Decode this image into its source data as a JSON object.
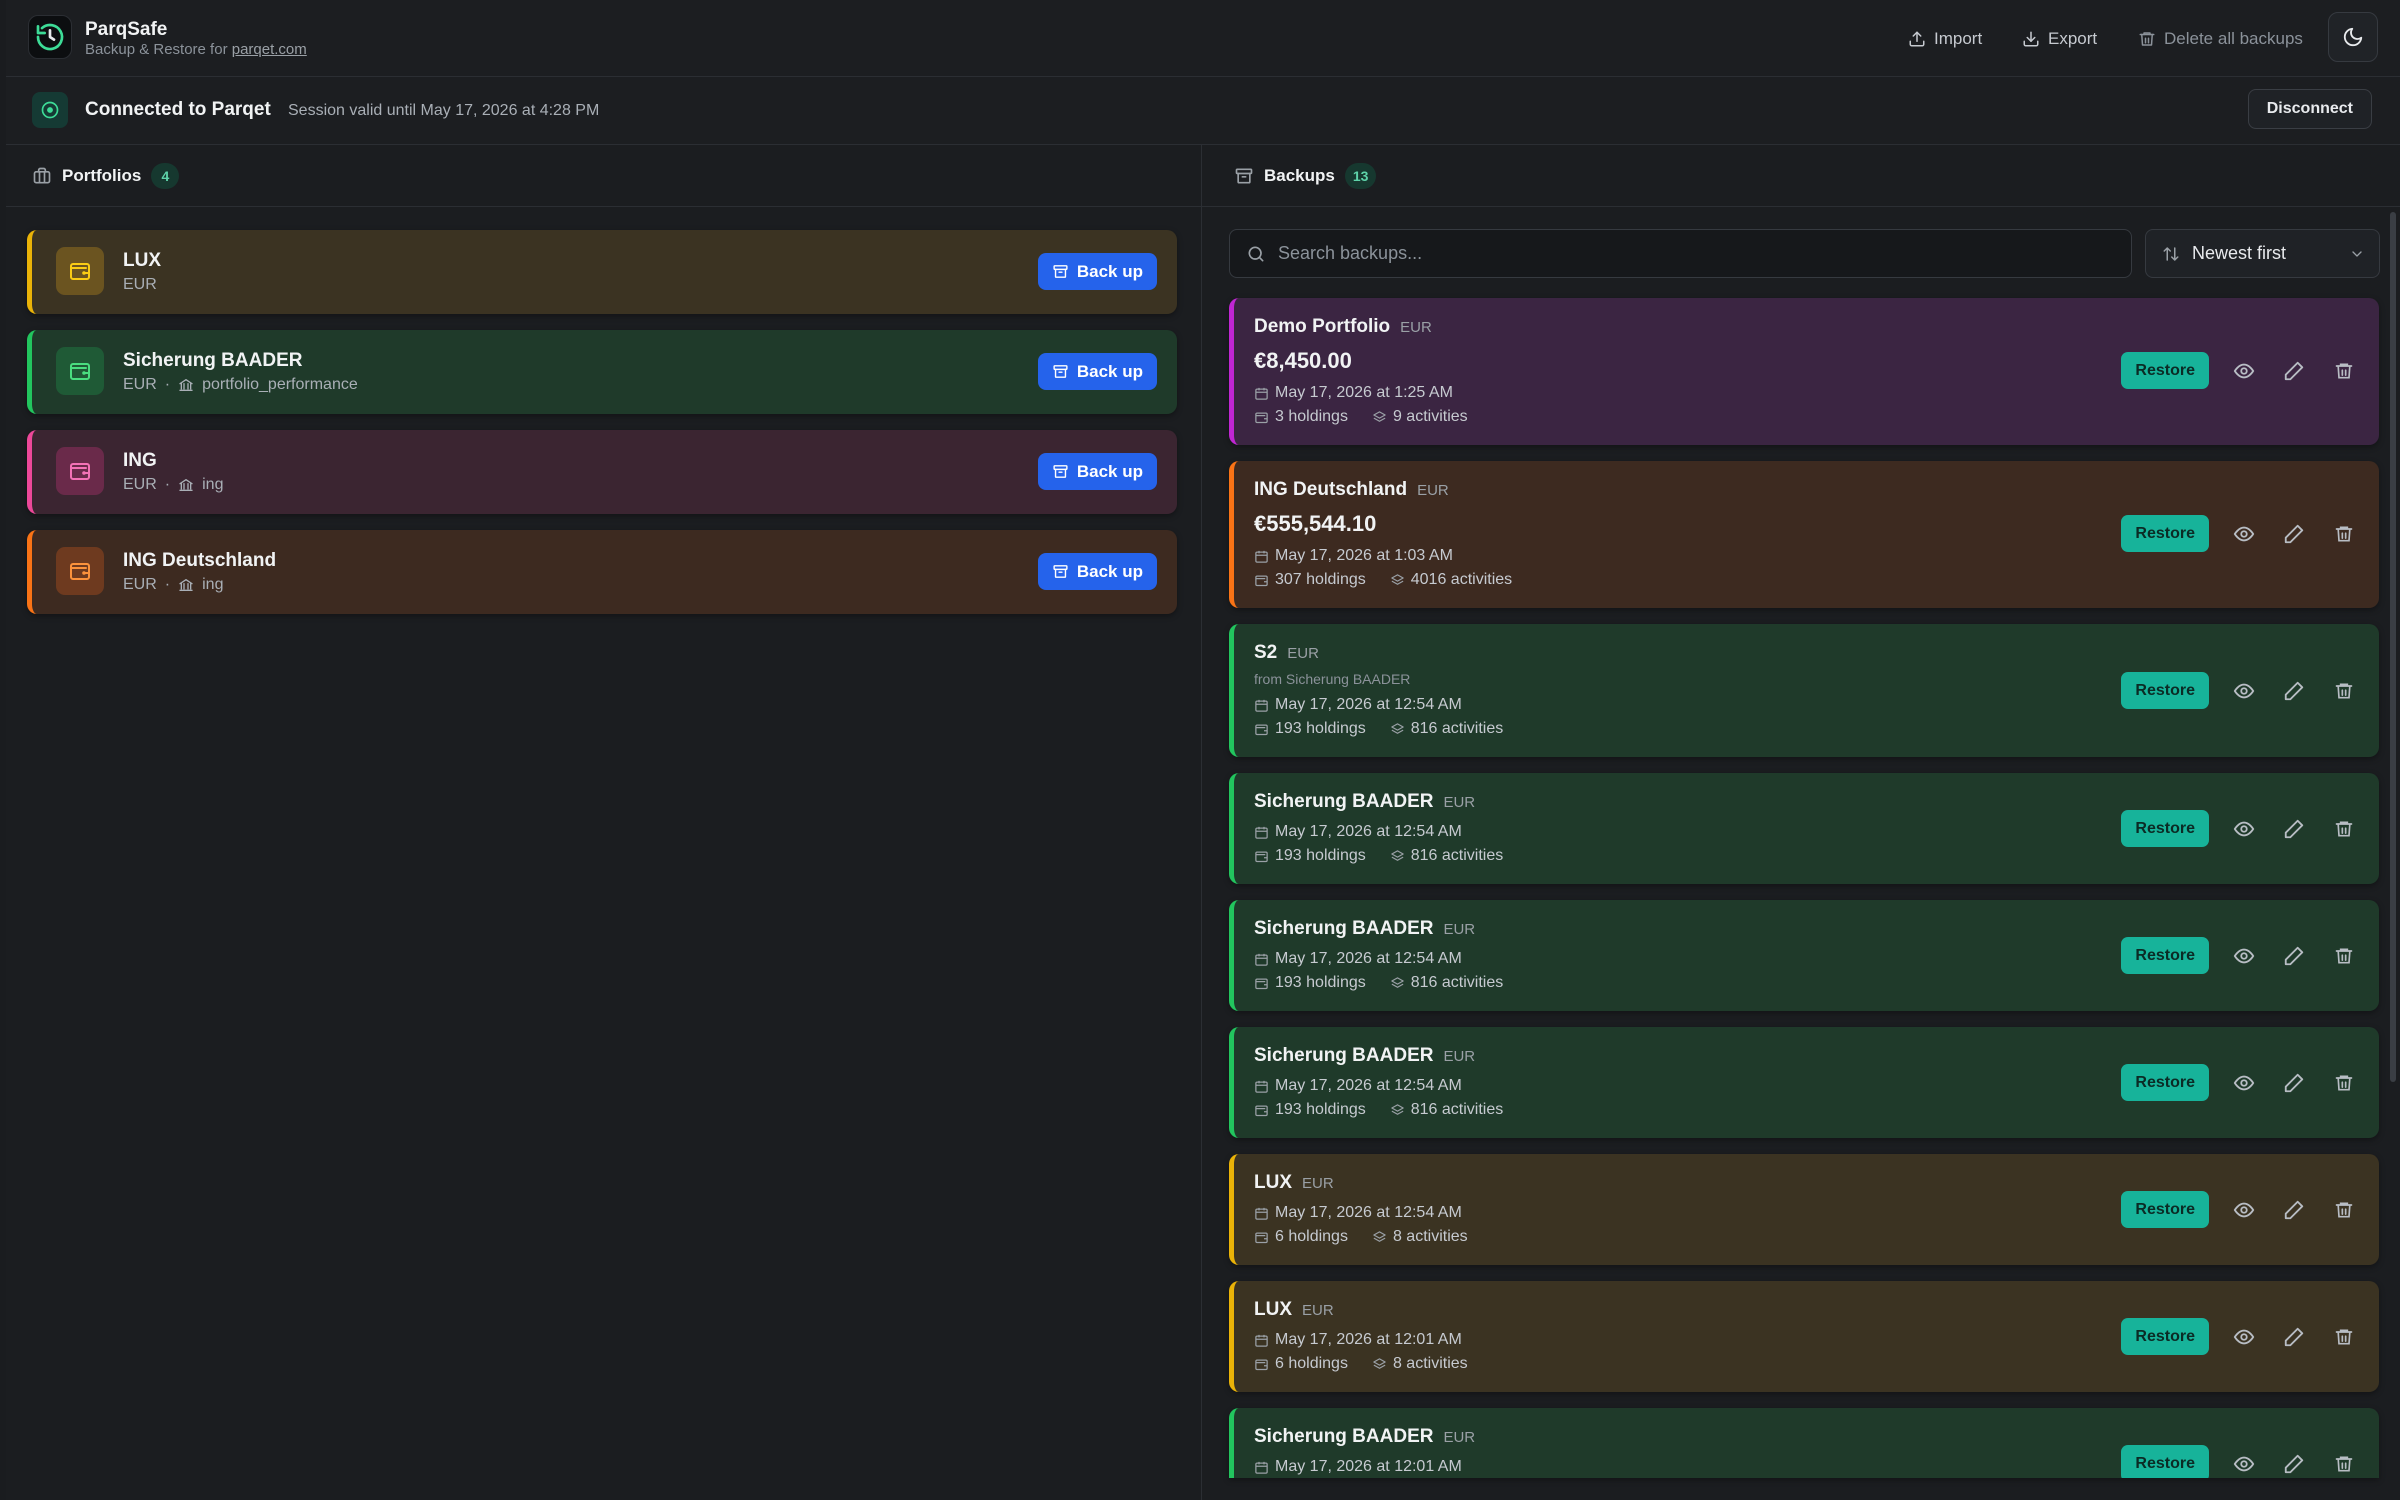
{
  "header": {
    "app_name": "ParqSafe",
    "subtitle_prefix": "Backup & Restore for ",
    "subtitle_link": "parqet.com",
    "import_label": "Import",
    "export_label": "Export",
    "delete_all_label": "Delete all backups"
  },
  "connection": {
    "title": "Connected to Parqet",
    "session": "Session valid until May 17, 2026 at 4:28 PM",
    "disconnect_label": "Disconnect"
  },
  "portfolios": {
    "title": "Portfolios",
    "count": "4",
    "backup_label": "Back up",
    "items": [
      {
        "name": "LUX",
        "currency": "EUR",
        "sep": "",
        "source": ""
      },
      {
        "name": "Sicherung BAADER",
        "currency": "EUR",
        "sep": "·",
        "source": "portfolio_performance"
      },
      {
        "name": "ING",
        "currency": "EUR",
        "sep": "·",
        "source": "ing"
      },
      {
        "name": "ING Deutschland",
        "currency": "EUR",
        "sep": "·",
        "source": "ing"
      }
    ]
  },
  "backups": {
    "title": "Backups",
    "count": "13",
    "search_placeholder": "Search backups...",
    "sort_label": "Newest first",
    "restore_label": "Restore",
    "items": [
      {
        "name": "Demo Portfolio",
        "currency": "EUR",
        "value": "€8,450.00",
        "from": "",
        "date": "May 17, 2026 at 1:25 AM",
        "holdings": "3 holdings",
        "activities": "9 activities"
      },
      {
        "name": "ING Deutschland",
        "currency": "EUR",
        "value": "€555,544.10",
        "from": "",
        "date": "May 17, 2026 at 1:03 AM",
        "holdings": "307 holdings",
        "activities": "4016 activities"
      },
      {
        "name": "S2",
        "currency": "EUR",
        "value": "",
        "from": "from Sicherung BAADER",
        "date": "May 17, 2026 at 12:54 AM",
        "holdings": "193 holdings",
        "activities": "816 activities"
      },
      {
        "name": "Sicherung BAADER",
        "currency": "EUR",
        "value": "",
        "from": "",
        "date": "May 17, 2026 at 12:54 AM",
        "holdings": "193 holdings",
        "activities": "816 activities"
      },
      {
        "name": "Sicherung BAADER",
        "currency": "EUR",
        "value": "",
        "from": "",
        "date": "May 17, 2026 at 12:54 AM",
        "holdings": "193 holdings",
        "activities": "816 activities"
      },
      {
        "name": "Sicherung BAADER",
        "currency": "EUR",
        "value": "",
        "from": "",
        "date": "May 17, 2026 at 12:54 AM",
        "holdings": "193 holdings",
        "activities": "816 activities"
      },
      {
        "name": "LUX",
        "currency": "EUR",
        "value": "",
        "from": "",
        "date": "May 17, 2026 at 12:54 AM",
        "holdings": "6 holdings",
        "activities": "8 activities"
      },
      {
        "name": "LUX",
        "currency": "EUR",
        "value": "",
        "from": "",
        "date": "May 17, 2026 at 12:01 AM",
        "holdings": "6 holdings",
        "activities": "8 activities"
      },
      {
        "name": "Sicherung BAADER",
        "currency": "EUR",
        "value": "",
        "from": "",
        "date": "May 17, 2026 at 12:01 AM",
        "holdings": "",
        "activities": ""
      }
    ]
  },
  "colors": {
    "yellow_accent": "#eab308",
    "green_accent": "#22c55e",
    "pink_accent": "#ec4899",
    "orange_accent": "#f97316",
    "purple_accent": "#c026d3",
    "primary_button": "#2563eb",
    "restore_button": "#17b39a"
  }
}
